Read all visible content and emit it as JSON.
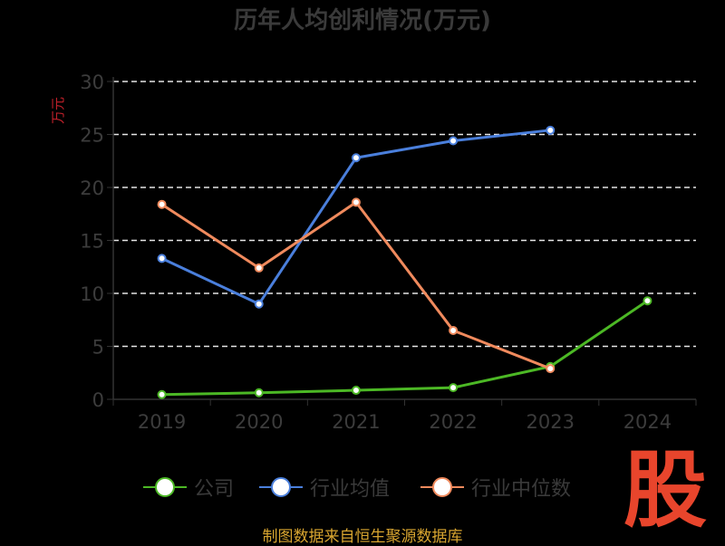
{
  "chart_data": {
    "type": "line",
    "title": "历年人均创利情况(万元)",
    "ylabel": "万元",
    "categories": [
      "2019",
      "2020",
      "2021",
      "2022",
      "2023",
      "2024"
    ],
    "ylim": [
      0,
      30
    ],
    "yticks": [
      "0",
      "5",
      "10",
      "15",
      "20",
      "25",
      "30"
    ],
    "grid": true,
    "legend_position": "bottom",
    "series": [
      {
        "name": "公司",
        "color": "#4cb825",
        "values": [
          0.45,
          0.62,
          0.85,
          1.1,
          3.1,
          9.3
        ]
      },
      {
        "name": "行业均值",
        "color": "#4a7fdc",
        "values": [
          13.3,
          9.0,
          22.8,
          24.4,
          25.4,
          null
        ]
      },
      {
        "name": "行业中位数",
        "color": "#f08a5d",
        "values": [
          18.4,
          12.4,
          18.6,
          6.5,
          2.9,
          null
        ]
      }
    ]
  },
  "footer": {
    "logo": "股",
    "source": "制图数据来自恒生聚源数据库"
  }
}
